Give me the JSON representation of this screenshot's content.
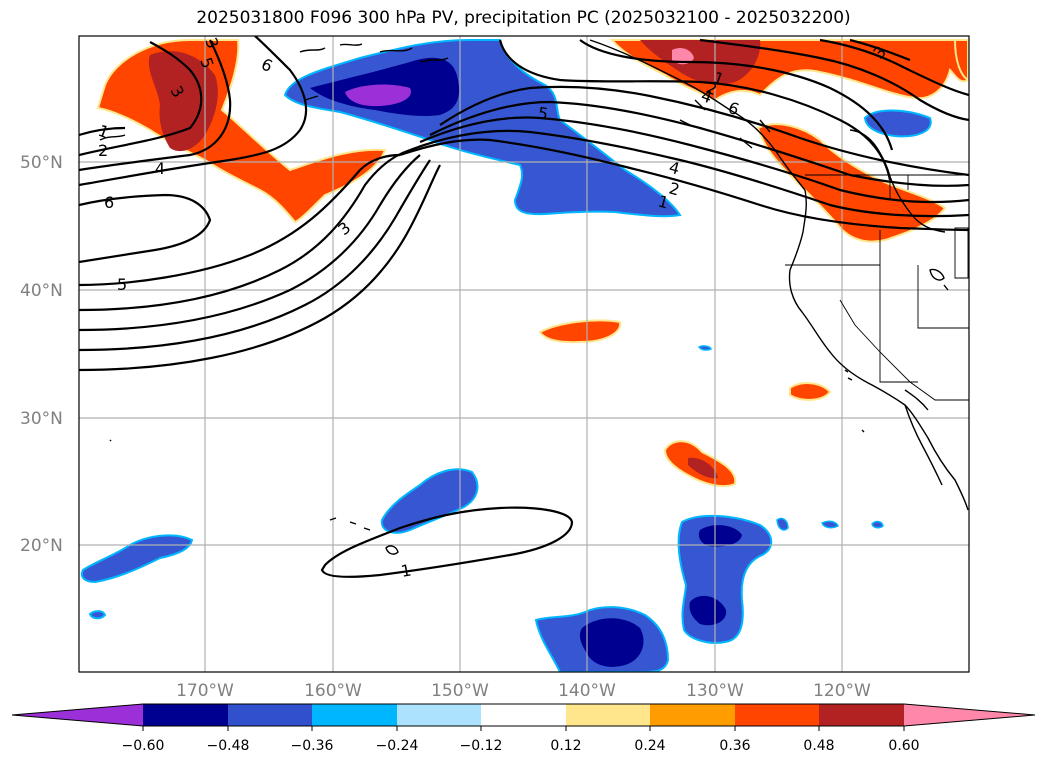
{
  "title": "2025031800 F096 300 hPa PV, precipitation PC (2025032100 - 2025032200)",
  "map": {
    "lat_labels": [
      "50°N",
      "40°N",
      "30°N",
      "20°N"
    ],
    "lon_labels": [
      "170°W",
      "160°W",
      "150°W",
      "140°W",
      "130°W",
      "120°W"
    ],
    "contour_labels": [
      "1",
      "2",
      "3",
      "4",
      "5",
      "6",
      "6",
      "5",
      "4",
      "3",
      "2",
      "1",
      "6",
      "5",
      "4",
      "3",
      "2",
      "1",
      "3",
      "1"
    ]
  },
  "colorbar": {
    "ticks": [
      "−0.60",
      "−0.48",
      "−0.36",
      "−0.24",
      "−0.12",
      "0.12",
      "0.24",
      "0.36",
      "0.48",
      "0.60"
    ],
    "colors": [
      "#9b30d8",
      "#000090",
      "#3050cc",
      "#00b7ff",
      "#ade2ff",
      "#ffffff",
      "#ffe68c",
      "#ff9d00",
      "#ff4500",
      "#b22222",
      "#ff88aa"
    ]
  },
  "palette": {
    "purple": "#9b30d8",
    "navy": "#000090",
    "blue": "#3657d1",
    "cyan": "#00b7ff",
    "lightblue": "#ade2ff",
    "yellow": "#ffe68c",
    "orange": "#ff9d00",
    "redorange": "#ff4500",
    "darkred": "#b22222",
    "pink": "#ff88aa"
  }
}
